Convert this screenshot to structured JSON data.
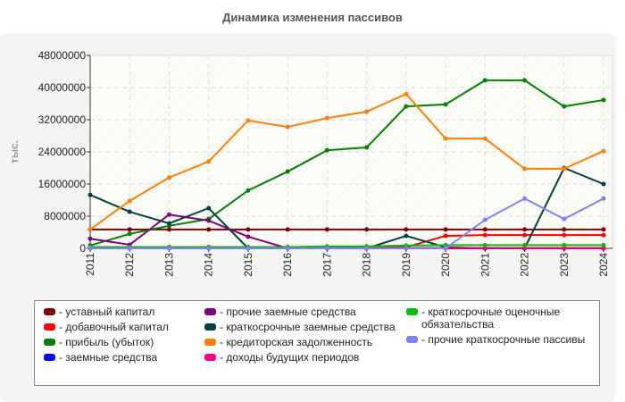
{
  "chart_data": {
    "type": "line",
    "title": "Динамика изменения пассивов",
    "ylabel": "тыс.",
    "xlabel": "",
    "ylim": [
      0,
      48000000
    ],
    "yticks": [
      "0",
      "8000000",
      "16000000",
      "24000000",
      "32000000",
      "40000000",
      "48000000"
    ],
    "categories": [
      "2011",
      "2012",
      "2013",
      "2014",
      "2015",
      "2016",
      "2017",
      "2018",
      "2019",
      "2020",
      "2021",
      "2022",
      "2023",
      "2024"
    ],
    "grid": true,
    "legend_position": "bottom",
    "series": [
      {
        "name": "- уставный капитал",
        "color": "#800000",
        "values": [
          4700000,
          4700000,
          4700000,
          4700000,
          4700000,
          4700000,
          4700000,
          4700000,
          4700000,
          4700000,
          4700000,
          4700000,
          4700000,
          4700000
        ]
      },
      {
        "name": "- добавочный капитал",
        "color": "#ff0000",
        "values": [
          300000,
          300000,
          300000,
          300000,
          300000,
          300000,
          300000,
          300000,
          300000,
          3100000,
          3300000,
          3300000,
          3300000,
          3300000
        ]
      },
      {
        "name": "- прибыль (убыток)",
        "color": "#008000",
        "values": [
          700000,
          3600000,
          5600000,
          7300000,
          14400000,
          19100000,
          24400000,
          25100000,
          35300000,
          35800000,
          41800000,
          41800000,
          35300000,
          36900000
        ]
      },
      {
        "name": "- заемные средства",
        "color": "#0000ff",
        "values": [
          0,
          0,
          0,
          0,
          0,
          0,
          0,
          0,
          0,
          0,
          0,
          0,
          0,
          0
        ]
      },
      {
        "name": "- прочие заемные средства",
        "color": "#800080",
        "values": [
          2400000,
          900000,
          8400000,
          6900000,
          2900000,
          0,
          0,
          0,
          0,
          0,
          0,
          0,
          0,
          0
        ]
      },
      {
        "name": "- краткосрочные заемные средства",
        "color": "#004040",
        "values": [
          13300000,
          9100000,
          6200000,
          10000000,
          0,
          0,
          0,
          0,
          3100000,
          300000,
          0,
          0,
          20000000,
          16000000
        ]
      },
      {
        "name": "- кредиторская задолженность",
        "color": "#ff8000",
        "values": [
          4700000,
          11800000,
          17600000,
          21600000,
          31800000,
          30200000,
          32400000,
          34000000,
          38400000,
          27300000,
          27300000,
          19800000,
          19800000,
          24200000
        ]
      },
      {
        "name": "- доходы будущих периодов",
        "color": "#ff0080",
        "values": [
          100000,
          100000,
          100000,
          100000,
          100000,
          100000,
          100000,
          100000,
          100000,
          100000,
          100000,
          100000,
          100000,
          100000
        ]
      },
      {
        "name": "- краткосрочные оценочные обязательства",
        "color": "#00c000",
        "values": [
          300000,
          300000,
          300000,
          300000,
          300000,
          300000,
          500000,
          500000,
          700000,
          800000,
          800000,
          800000,
          800000,
          800000
        ]
      },
      {
        "name": "- прочие краткосрочные пассивы",
        "color": "#8080ff",
        "values": [
          0,
          0,
          0,
          0,
          0,
          0,
          0,
          0,
          0,
          0,
          7100000,
          12400000,
          7300000,
          12400000
        ]
      }
    ]
  }
}
